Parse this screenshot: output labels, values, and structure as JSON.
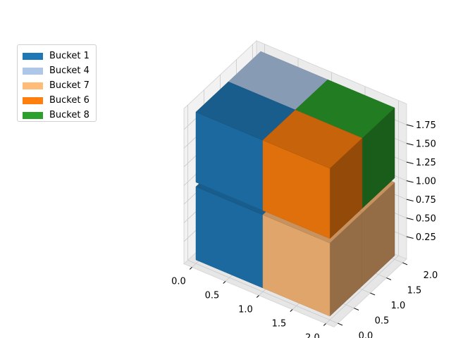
{
  "chart_data": {
    "type": "bar3d",
    "title": "",
    "legend": {
      "placement": "upper-left",
      "entries": [
        {
          "label": "Bucket 1",
          "color": "#1f77b4"
        },
        {
          "label": "Bucket 4",
          "color": "#aec7e8"
        },
        {
          "label": "Bucket 7",
          "color": "#ffbb78"
        },
        {
          "label": "Bucket 6",
          "color": "#ff7f0e"
        },
        {
          "label": "Bucket 8",
          "color": "#2ca02c"
        }
      ]
    },
    "axes": {
      "x": {
        "ticks": [
          "0.0",
          "0.5",
          "1.0",
          "1.5",
          "2.0"
        ],
        "range": [
          0,
          2
        ]
      },
      "y": {
        "ticks": [
          "0.0",
          "0.5",
          "1.0",
          "1.5",
          "2.0"
        ],
        "range": [
          0,
          2
        ]
      },
      "z": {
        "ticks": [
          "0.25",
          "0.50",
          "0.75",
          "1.00",
          "1.25",
          "1.50",
          "1.75"
        ],
        "range": [
          0,
          2
        ]
      }
    },
    "bars": [
      {
        "series": "Bucket 1",
        "color": "#1f77b4",
        "x": 0,
        "y": 0,
        "z": 0,
        "dx": 1,
        "dy": 1,
        "dz": 1
      },
      {
        "series": "Bucket 1",
        "color": "#1f77b4",
        "x": 0,
        "y": 0,
        "z": 1,
        "dx": 1,
        "dy": 1,
        "dz": 1
      },
      {
        "series": "Bucket 4",
        "color": "#aec7e8",
        "x": 0,
        "y": 1,
        "z": 0,
        "dx": 1,
        "dy": 1,
        "dz": 1
      },
      {
        "series": "Bucket 4",
        "color": "#aec7e8",
        "x": 0,
        "y": 1,
        "z": 1,
        "dx": 1,
        "dy": 1,
        "dz": 1
      },
      {
        "series": "Bucket 7",
        "color": "#ffbb78",
        "x": 1,
        "y": 0,
        "z": 0,
        "dx": 1,
        "dy": 1,
        "dz": 1
      },
      {
        "series": "Bucket 7",
        "color": "#ffbb78",
        "x": 1,
        "y": 1,
        "z": 0,
        "dx": 1,
        "dy": 1,
        "dz": 1
      },
      {
        "series": "Bucket 6",
        "color": "#ff7f0e",
        "x": 1,
        "y": 0,
        "z": 1,
        "dx": 1,
        "dy": 1,
        "dz": 1
      },
      {
        "series": "Bucket 8",
        "color": "#2ca02c",
        "x": 1,
        "y": 1,
        "z": 1,
        "dx": 1,
        "dy": 1,
        "dz": 1
      }
    ]
  }
}
